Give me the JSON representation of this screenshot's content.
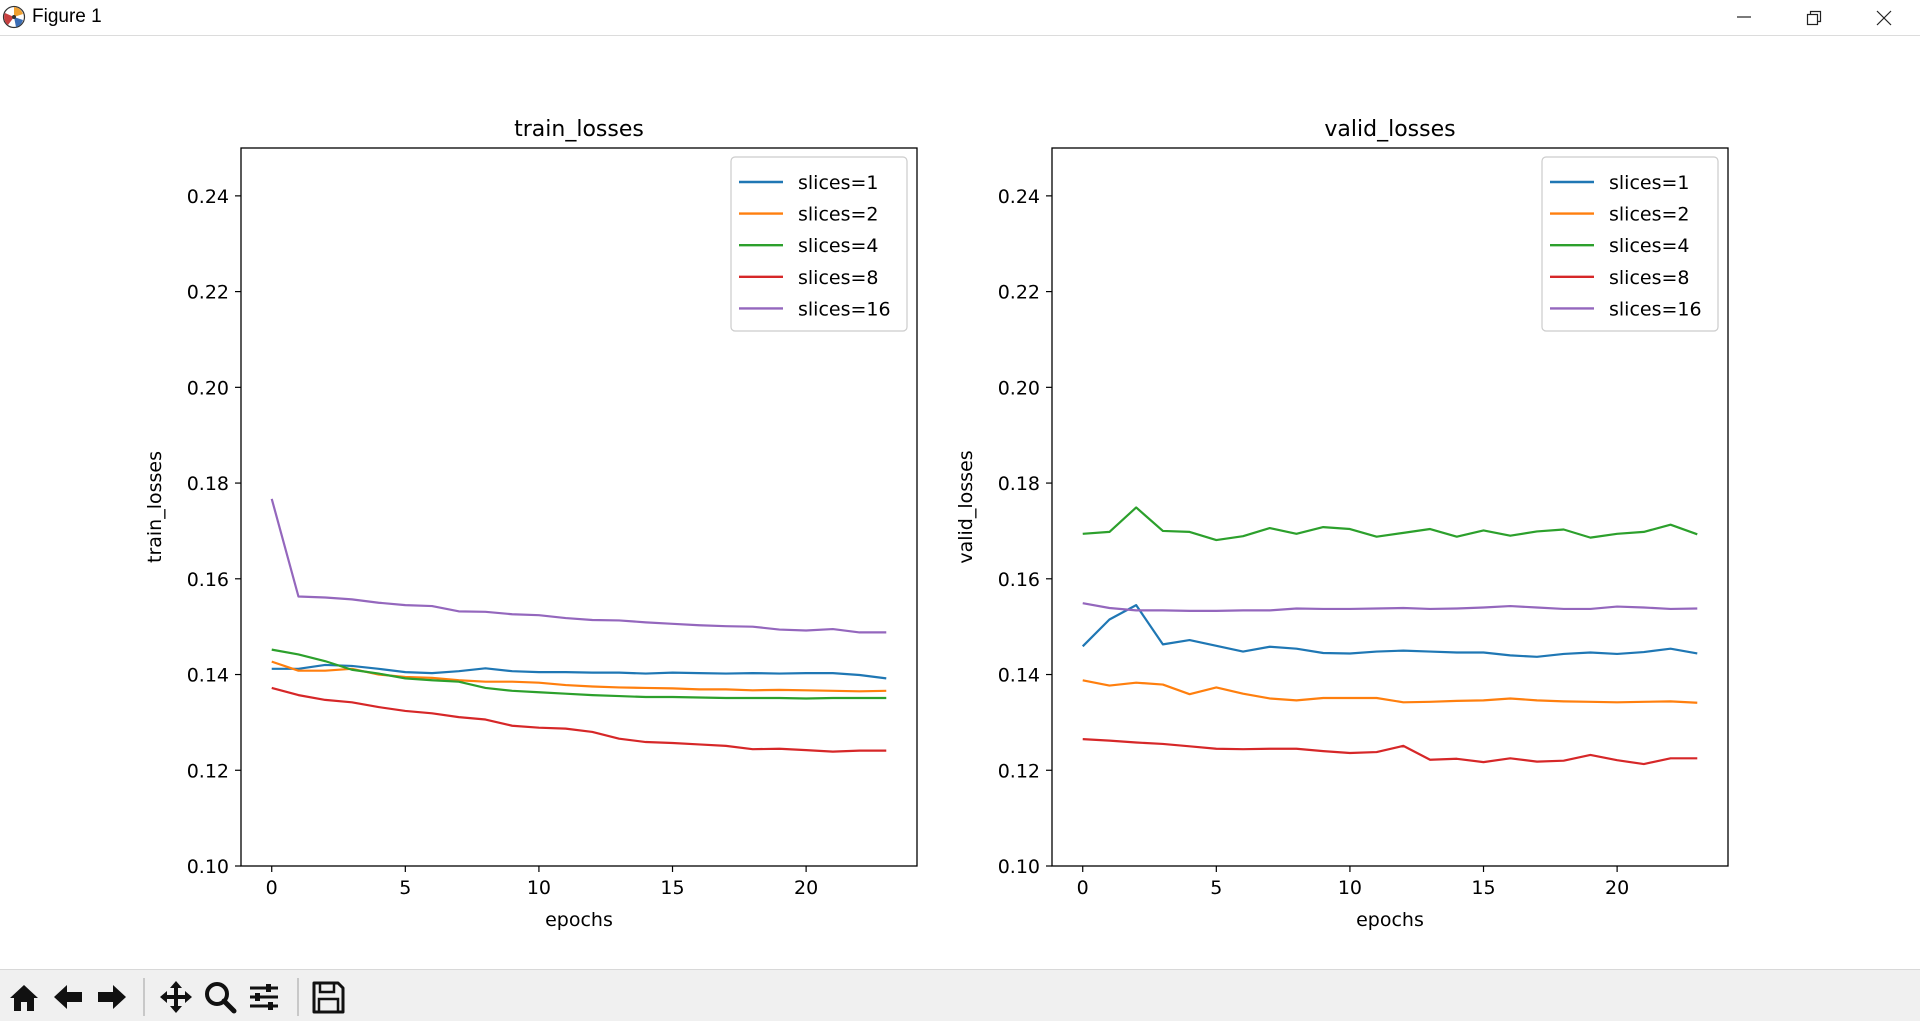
{
  "window": {
    "title": "Figure 1",
    "icon": "matplotlib-icon",
    "controls": [
      "minimize-icon",
      "restore-icon",
      "close-icon"
    ]
  },
  "toolbar": {
    "buttons": [
      "home-icon",
      "back-arrow-icon",
      "forward-arrow-icon",
      "pan-icon",
      "zoom-icon",
      "configure-subplots-icon",
      "save-icon"
    ]
  },
  "chart_data": [
    {
      "type": "line",
      "title": "train_losses",
      "xlabel": "epochs",
      "ylabel": "train_losses",
      "xlim": [
        -1.15,
        24.15
      ],
      "ylim": [
        0.1,
        0.25
      ],
      "xticks": [
        "0",
        "5",
        "10",
        "15",
        "20"
      ],
      "yticks": [
        "0.10",
        "0.12",
        "0.14",
        "0.16",
        "0.18",
        "0.20",
        "0.22",
        "0.24"
      ],
      "legend_position": "top-right",
      "grid": false,
      "x": [
        0,
        1,
        2,
        3,
        4,
        5,
        6,
        7,
        8,
        9,
        10,
        11,
        12,
        13,
        14,
        15,
        16,
        17,
        18,
        19,
        20,
        21,
        22,
        23
      ],
      "series": [
        {
          "name": "slices=1",
          "color": "#1f77b4",
          "values": [
            0.1412,
            0.1412,
            0.142,
            0.1418,
            0.1412,
            0.1405,
            0.1403,
            0.1407,
            0.1413,
            0.1407,
            0.1405,
            0.1405,
            0.1404,
            0.1404,
            0.1402,
            0.1404,
            0.1403,
            0.1402,
            0.1403,
            0.1402,
            0.1403,
            0.1403,
            0.1399,
            0.1392
          ]
        },
        {
          "name": "slices=2",
          "color": "#ff7f0e",
          "values": [
            0.1427,
            0.1408,
            0.1408,
            0.1412,
            0.14,
            0.1395,
            0.1393,
            0.1388,
            0.1385,
            0.1385,
            0.1383,
            0.1378,
            0.1375,
            0.1373,
            0.1372,
            0.1371,
            0.1369,
            0.1369,
            0.1367,
            0.1368,
            0.1367,
            0.1366,
            0.1365,
            0.1366
          ]
        },
        {
          "name": "slices=4",
          "color": "#2ca02c",
          "values": [
            0.1452,
            0.1442,
            0.1428,
            0.141,
            0.1402,
            0.1392,
            0.1388,
            0.1385,
            0.1372,
            0.1366,
            0.1363,
            0.136,
            0.1357,
            0.1355,
            0.1353,
            0.1353,
            0.1352,
            0.1351,
            0.1351,
            0.1351,
            0.135,
            0.1351,
            0.1351,
            0.1351
          ]
        },
        {
          "name": "slices=8",
          "color": "#d62728",
          "values": [
            0.1372,
            0.1357,
            0.1347,
            0.1342,
            0.1332,
            0.1324,
            0.1319,
            0.1311,
            0.1306,
            0.1293,
            0.1289,
            0.1287,
            0.128,
            0.1266,
            0.1259,
            0.1257,
            0.1254,
            0.1251,
            0.1244,
            0.1245,
            0.1242,
            0.1239,
            0.1241,
            0.1241
          ]
        },
        {
          "name": "slices=16",
          "color": "#9467bd",
          "values": [
            0.1767,
            0.1563,
            0.1561,
            0.1557,
            0.155,
            0.1545,
            0.1543,
            0.1532,
            0.1531,
            0.1526,
            0.1524,
            0.1518,
            0.1514,
            0.1513,
            0.1509,
            0.1506,
            0.1503,
            0.1501,
            0.15,
            0.1494,
            0.1492,
            0.1495,
            0.1488,
            0.1488
          ]
        }
      ]
    },
    {
      "type": "line",
      "title": "valid_losses",
      "xlabel": "epochs",
      "ylabel": "valid_losses",
      "xlim": [
        -1.15,
        24.15
      ],
      "ylim": [
        0.1,
        0.25
      ],
      "xticks": [
        "0",
        "5",
        "10",
        "15",
        "20"
      ],
      "yticks": [
        "0.10",
        "0.12",
        "0.14",
        "0.16",
        "0.18",
        "0.20",
        "0.22",
        "0.24"
      ],
      "legend_position": "top-right",
      "grid": false,
      "x": [
        0,
        1,
        2,
        3,
        4,
        5,
        6,
        7,
        8,
        9,
        10,
        11,
        12,
        13,
        14,
        15,
        16,
        17,
        18,
        19,
        20,
        21,
        22,
        23
      ],
      "series": [
        {
          "name": "slices=1",
          "color": "#1f77b4",
          "values": [
            0.1459,
            0.1515,
            0.1545,
            0.1463,
            0.1472,
            0.146,
            0.1448,
            0.1458,
            0.1454,
            0.1445,
            0.1444,
            0.1448,
            0.145,
            0.1448,
            0.1446,
            0.1446,
            0.144,
            0.1437,
            0.1443,
            0.1446,
            0.1443,
            0.1447,
            0.1454,
            0.1444
          ]
        },
        {
          "name": "slices=2",
          "color": "#ff7f0e",
          "values": [
            0.1388,
            0.1377,
            0.1383,
            0.1379,
            0.1359,
            0.1373,
            0.136,
            0.135,
            0.1346,
            0.1351,
            0.1351,
            0.1351,
            0.1342,
            0.1343,
            0.1345,
            0.1346,
            0.135,
            0.1346,
            0.1344,
            0.1343,
            0.1342,
            0.1343,
            0.1344,
            0.1341
          ]
        },
        {
          "name": "slices=4",
          "color": "#2ca02c",
          "values": [
            0.1694,
            0.1698,
            0.1749,
            0.17,
            0.1698,
            0.1681,
            0.1689,
            0.1706,
            0.1694,
            0.1708,
            0.1704,
            0.1688,
            0.1696,
            0.1704,
            0.1688,
            0.1701,
            0.169,
            0.1699,
            0.1703,
            0.1686,
            0.1694,
            0.1698,
            0.1713,
            0.1693
          ]
        },
        {
          "name": "slices=8",
          "color": "#d62728",
          "values": [
            0.1265,
            0.1262,
            0.1258,
            0.1255,
            0.125,
            0.1245,
            0.1244,
            0.1245,
            0.1245,
            0.124,
            0.1236,
            0.1238,
            0.1251,
            0.1222,
            0.1224,
            0.1217,
            0.1225,
            0.1218,
            0.122,
            0.1232,
            0.1221,
            0.1213,
            0.1225,
            0.1225
          ]
        },
        {
          "name": "slices=16",
          "color": "#9467bd",
          "values": [
            0.1549,
            0.1539,
            0.1534,
            0.1534,
            0.1533,
            0.1533,
            0.1534,
            0.1534,
            0.1538,
            0.1537,
            0.1537,
            0.1538,
            0.1539,
            0.1537,
            0.1538,
            0.154,
            0.1543,
            0.154,
            0.1537,
            0.1537,
            0.1542,
            0.154,
            0.1537,
            0.1538
          ]
        }
      ]
    }
  ]
}
